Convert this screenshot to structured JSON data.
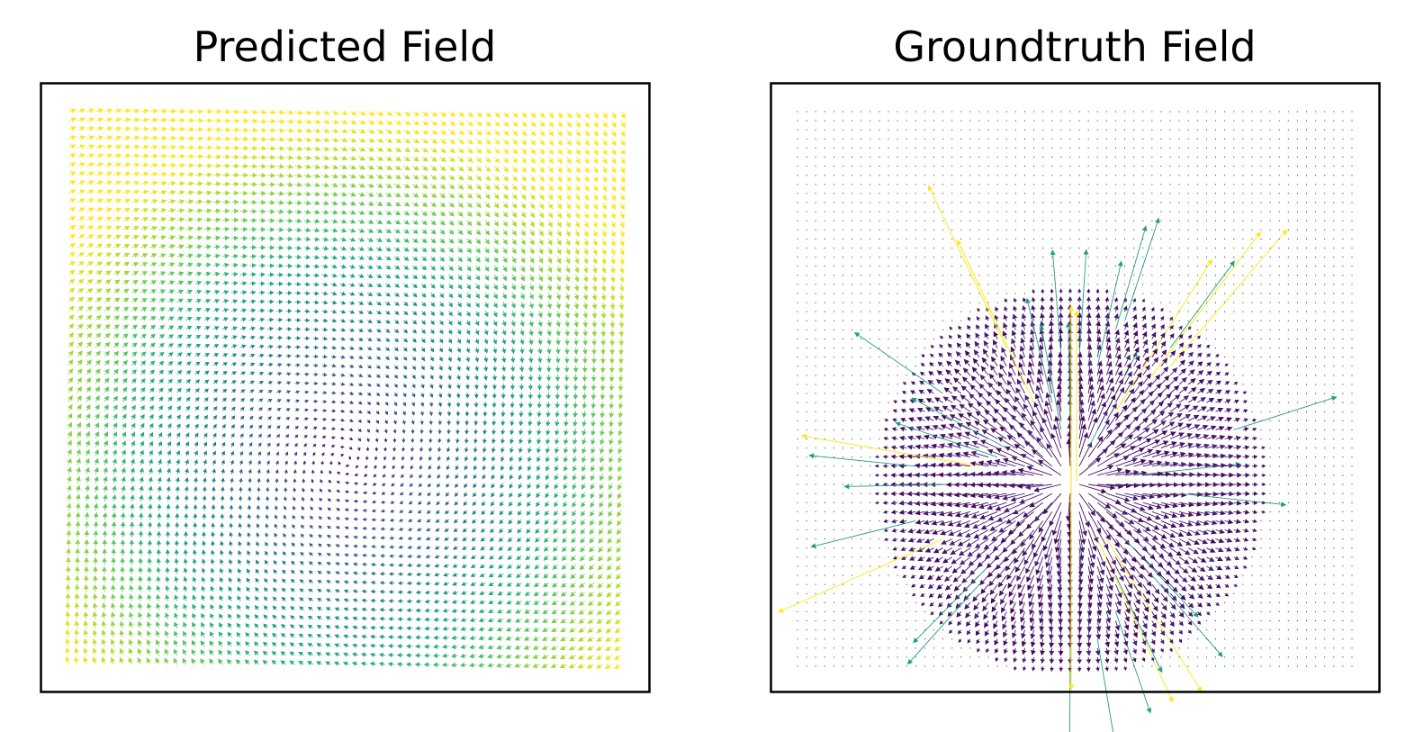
{
  "chart_data": [
    {
      "type": "quiver",
      "title": "Predicted Field",
      "xlabel": "",
      "ylabel": "",
      "grid": false,
      "ticks": false,
      "field": {
        "description": "rotational/spiral flow around a central vortex",
        "center": [
          0.5,
          0.37
        ],
        "grid_n": [
          62,
          62
        ],
        "xlim": [
          0,
          1
        ],
        "ylim": [
          0,
          1
        ],
        "colormap": "viridis",
        "magnitude_range": [
          0,
          1
        ],
        "color_note": "low magnitude (purple) near vortex center, high magnitude (yellow) near top-left and right edges"
      }
    },
    {
      "type": "quiver",
      "title": "Groundtruth Field",
      "xlabel": "",
      "ylabel": "",
      "grid": false,
      "ticks": false,
      "field": {
        "description": "radially diverging source field with long spike arrows",
        "center": [
          0.5,
          0.33
        ],
        "grid_n": [
          62,
          62
        ],
        "xlim": [
          0,
          1
        ],
        "ylim": [
          0,
          1
        ],
        "colormap": "viridis",
        "magnitude_range": [
          0,
          1
        ],
        "color_note": "dense dark-purple arrows around the source, sparse long yellow/green spikes radiating outward, tiny black dots far away"
      }
    }
  ],
  "colors": {
    "viridis_low": "#440154",
    "viridis_mid": "#21918c",
    "viridis_high": "#fde725",
    "frame": "#000000",
    "background": "#ffffff"
  }
}
